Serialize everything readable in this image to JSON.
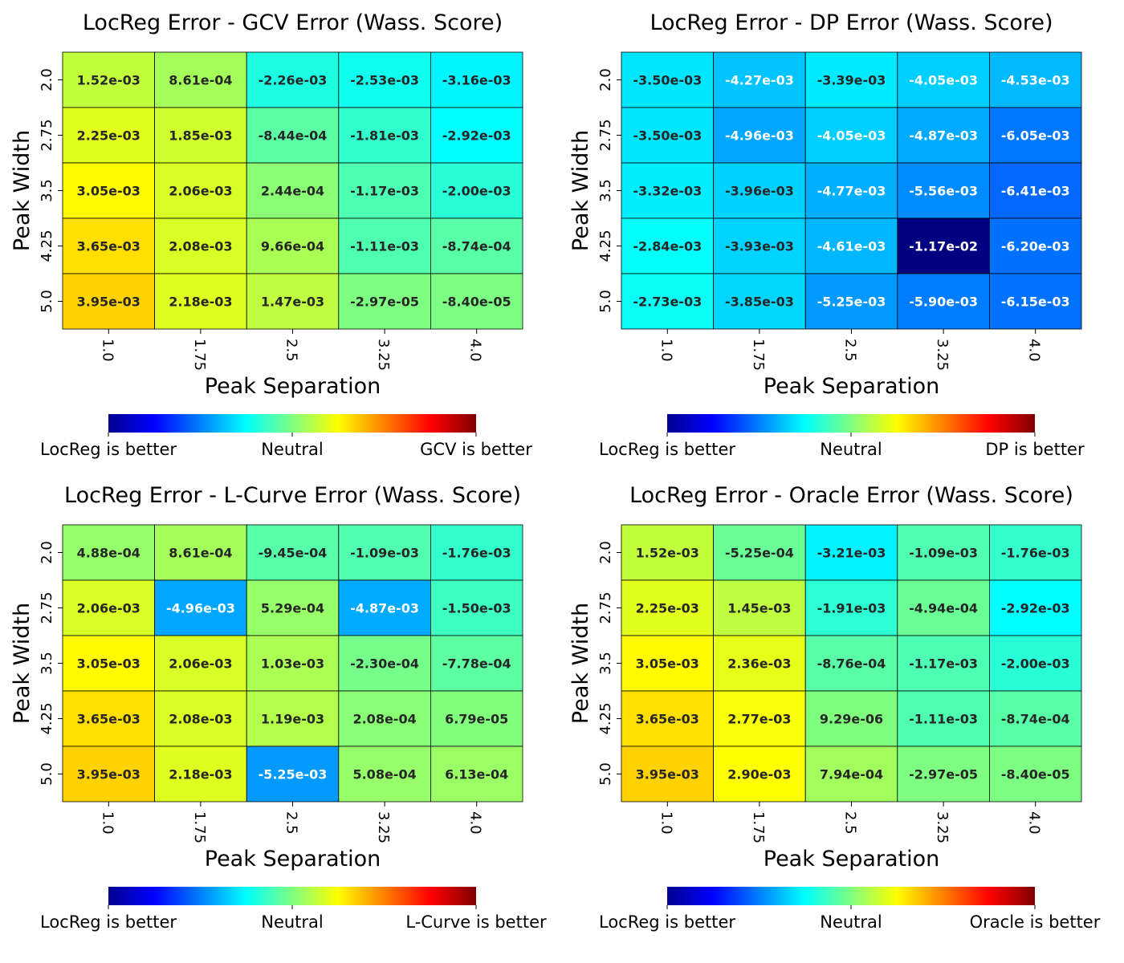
{
  "figure": {
    "colormap": "jet",
    "colormap_stops": [
      "#00008f",
      "#0000ff",
      "#0080ff",
      "#00ffff",
      "#80ff80",
      "#ffff00",
      "#ff8000",
      "#ff0000",
      "#800000"
    ]
  },
  "chart_data": [
    {
      "type": "heatmap",
      "title": "LocReg Error - GCV Error (Wass. Score)",
      "xlabel": "Peak Separation",
      "ylabel": "Peak Width",
      "x_categories": [
        "1.0",
        "1.75",
        "2.5",
        "3.25",
        "4.0"
      ],
      "y_categories": [
        "2.0",
        "2.75",
        "3.5",
        "4.25",
        "5.0"
      ],
      "labels": [
        [
          "1.52e-03",
          "8.61e-04",
          "-2.26e-03",
          "-2.53e-03",
          "-3.16e-03"
        ],
        [
          "2.25e-03",
          "1.85e-03",
          "-8.44e-04",
          "-1.81e-03",
          "-2.92e-03"
        ],
        [
          "3.05e-03",
          "2.06e-03",
          "2.44e-04",
          "-1.17e-03",
          "-2.00e-03"
        ],
        [
          "3.65e-03",
          "2.08e-03",
          "9.66e-04",
          "-1.11e-03",
          "-8.74e-04"
        ],
        [
          "3.95e-03",
          "2.18e-03",
          "1.47e-03",
          "-2.97e-05",
          "-8.40e-05"
        ]
      ],
      "values": [
        [
          0.00152,
          0.000861,
          -0.00226,
          -0.00253,
          -0.00316
        ],
        [
          0.00225,
          0.00185,
          -0.000844,
          -0.00181,
          -0.00292
        ],
        [
          0.00305,
          0.00206,
          0.000244,
          -0.00117,
          -0.002
        ],
        [
          0.00365,
          0.00208,
          0.000966,
          -0.00111,
          -0.000874
        ],
        [
          0.00395,
          0.00218,
          0.00147,
          -2.97e-05,
          -8.4e-05
        ]
      ],
      "colorbar": {
        "left": "LocReg is better",
        "center": "Neutral",
        "right": "GCV is better"
      },
      "color_range": [
        -0.0117,
        0.0117
      ]
    },
    {
      "type": "heatmap",
      "title": "LocReg Error - DP Error (Wass. Score)",
      "xlabel": "Peak Separation",
      "ylabel": "Peak Width",
      "x_categories": [
        "1.0",
        "1.75",
        "2.5",
        "3.25",
        "4.0"
      ],
      "y_categories": [
        "2.0",
        "2.75",
        "3.5",
        "4.25",
        "5.0"
      ],
      "labels": [
        [
          "-3.50e-03",
          "-4.27e-03",
          "-3.39e-03",
          "-4.05e-03",
          "-4.53e-03"
        ],
        [
          "-3.50e-03",
          "-4.96e-03",
          "-4.05e-03",
          "-4.87e-03",
          "-6.05e-03"
        ],
        [
          "-3.32e-03",
          "-3.96e-03",
          "-4.77e-03",
          "-5.56e-03",
          "-6.41e-03"
        ],
        [
          "-2.84e-03",
          "-3.93e-03",
          "-4.61e-03",
          "-1.17e-02",
          "-6.20e-03"
        ],
        [
          "-2.73e-03",
          "-3.85e-03",
          "-5.25e-03",
          "-5.90e-03",
          "-6.15e-03"
        ]
      ],
      "values": [
        [
          -0.0035,
          -0.00427,
          -0.00339,
          -0.00405,
          -0.00453
        ],
        [
          -0.0035,
          -0.00496,
          -0.00405,
          -0.00487,
          -0.00605
        ],
        [
          -0.00332,
          -0.00396,
          -0.00477,
          -0.00556,
          -0.00641
        ],
        [
          -0.00284,
          -0.00393,
          -0.00461,
          -0.0117,
          -0.0062
        ],
        [
          -0.00273,
          -0.00385,
          -0.00525,
          -0.0059,
          -0.00615
        ]
      ],
      "colorbar": {
        "left": "LocReg is better",
        "center": "Neutral",
        "right": "DP is better"
      },
      "color_range": [
        -0.0117,
        0.0117
      ]
    },
    {
      "type": "heatmap",
      "title": "LocReg Error - L-Curve Error (Wass. Score)",
      "xlabel": "Peak Separation",
      "ylabel": "Peak Width",
      "x_categories": [
        "1.0",
        "1.75",
        "2.5",
        "3.25",
        "4.0"
      ],
      "y_categories": [
        "2.0",
        "2.75",
        "3.5",
        "4.25",
        "5.0"
      ],
      "labels": [
        [
          "4.88e-04",
          "8.61e-04",
          "-9.45e-04",
          "-1.09e-03",
          "-1.76e-03"
        ],
        [
          "2.06e-03",
          "-4.96e-03",
          "5.29e-04",
          "-4.87e-03",
          "-1.50e-03"
        ],
        [
          "3.05e-03",
          "2.06e-03",
          "1.03e-03",
          "-2.30e-04",
          "-7.78e-04"
        ],
        [
          "3.65e-03",
          "2.08e-03",
          "1.19e-03",
          "2.08e-04",
          "6.79e-05"
        ],
        [
          "3.95e-03",
          "2.18e-03",
          "-5.25e-03",
          "5.08e-04",
          "6.13e-04"
        ]
      ],
      "values": [
        [
          0.000488,
          0.000861,
          -0.000945,
          -0.00109,
          -0.00176
        ],
        [
          0.00206,
          -0.00496,
          0.000529,
          -0.00487,
          -0.0015
        ],
        [
          0.00305,
          0.00206,
          0.00103,
          -0.00023,
          -0.000778
        ],
        [
          0.00365,
          0.00208,
          0.00119,
          0.000208,
          6.79e-05
        ],
        [
          0.00395,
          0.00218,
          -0.00525,
          0.000508,
          0.000613
        ]
      ],
      "colorbar": {
        "left": "LocReg is better",
        "center": "Neutral",
        "right": "L-Curve is better"
      },
      "color_range": [
        -0.0117,
        0.0117
      ]
    },
    {
      "type": "heatmap",
      "title": "LocReg Error - Oracle Error (Wass. Score)",
      "xlabel": "Peak Separation",
      "ylabel": "Peak Width",
      "x_categories": [
        "1.0",
        "1.75",
        "2.5",
        "3.25",
        "4.0"
      ],
      "y_categories": [
        "2.0",
        "2.75",
        "3.5",
        "4.25",
        "5.0"
      ],
      "labels": [
        [
          "1.52e-03",
          "-5.25e-04",
          "-3.21e-03",
          "-1.09e-03",
          "-1.76e-03"
        ],
        [
          "2.25e-03",
          "1.45e-03",
          "-1.91e-03",
          "-4.94e-04",
          "-2.92e-03"
        ],
        [
          "3.05e-03",
          "2.36e-03",
          "-8.76e-04",
          "-1.17e-03",
          "-2.00e-03"
        ],
        [
          "3.65e-03",
          "2.77e-03",
          "9.29e-06",
          "-1.11e-03",
          "-8.74e-04"
        ],
        [
          "3.95e-03",
          "2.90e-03",
          "7.94e-04",
          "-2.97e-05",
          "-8.40e-05"
        ]
      ],
      "values": [
        [
          0.00152,
          -0.000525,
          -0.00321,
          -0.00109,
          -0.00176
        ],
        [
          0.00225,
          0.00145,
          -0.00191,
          -0.000494,
          -0.00292
        ],
        [
          0.00305,
          0.00236,
          -0.000876,
          -0.00117,
          -0.002
        ],
        [
          0.00365,
          0.00277,
          9.29e-06,
          -0.00111,
          -0.000874
        ],
        [
          0.00395,
          0.0029,
          0.000794,
          -2.97e-05,
          -8.4e-05
        ]
      ],
      "colorbar": {
        "left": "LocReg is better",
        "center": "Neutral",
        "right": "Oracle is better"
      },
      "color_range": [
        -0.0117,
        0.0117
      ]
    }
  ]
}
